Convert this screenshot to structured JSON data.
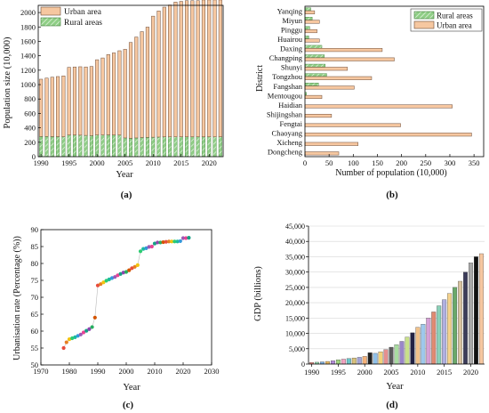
{
  "colors": {
    "urban": "#f6c7a0",
    "urban_edge": "#6b4a36",
    "rural": "#8fce86",
    "rural_edge": "#3c7a36",
    "connector": "#bbbbbb"
  },
  "chart_data": [
    {
      "id": "a",
      "type": "bar",
      "panel_label": "(a)",
      "xlabel": "Year",
      "ylabel": "Population size (10,000)",
      "xlim": [
        1989.5,
        2022.5
      ],
      "ylim": [
        0,
        2100
      ],
      "xticks": [
        1990,
        1995,
        2000,
        2005,
        2010,
        2015,
        2020
      ],
      "yticks": [
        0,
        200,
        400,
        600,
        800,
        1000,
        1200,
        1400,
        1600,
        1800,
        2000
      ],
      "legend_position": "top-left",
      "categories": [
        1990,
        1991,
        1992,
        1993,
        1994,
        1995,
        1996,
        1997,
        1998,
        1999,
        2000,
        2001,
        2002,
        2003,
        2004,
        2005,
        2006,
        2007,
        2008,
        2009,
        2010,
        2011,
        2012,
        2013,
        2014,
        2015,
        2016,
        2017,
        2018,
        2019,
        2020,
        2021,
        2022
      ],
      "series": [
        {
          "name": "Urban area",
          "values": [
            795,
            810,
            825,
            835,
            845,
            940,
            945,
            950,
            950,
            960,
            1045,
            1070,
            1115,
            1140,
            1170,
            1230,
            1330,
            1400,
            1470,
            1530,
            1680,
            1750,
            1800,
            1830,
            1870,
            1880,
            1890,
            1890,
            1890,
            1900,
            1900,
            1900,
            1900
          ]
        },
        {
          "name": "Rural areas",
          "values": [
            280,
            280,
            278,
            277,
            276,
            300,
            300,
            298,
            295,
            292,
            300,
            300,
            302,
            300,
            300,
            260,
            255,
            260,
            265,
            268,
            270,
            272,
            275,
            275,
            275,
            275,
            275,
            275,
            275,
            275,
            275,
            275,
            275
          ]
        }
      ]
    },
    {
      "id": "b",
      "type": "bar",
      "orientation": "horizontal",
      "panel_label": "(b)",
      "xlabel": "Number of population (10,000)",
      "ylabel": "District",
      "xlim": [
        0,
        370
      ],
      "xticks": [
        0,
        50,
        100,
        150,
        200,
        250,
        300,
        350
      ],
      "legend_position": "top-right",
      "categories": [
        "Yanqing",
        "Miyun",
        "Pinggu",
        "Huairou",
        "Daxing",
        "Changping",
        "Shunyi",
        "Tongzhou",
        "Fangshan",
        "Mentougou",
        "Haidian",
        "Shijingshan",
        "Fengtai",
        "Chaoyang",
        "Xicheng",
        "Dongcheng"
      ],
      "series": [
        {
          "name": "Rural areas",
          "values": [
            12,
            15,
            10,
            8,
            35,
            40,
            42,
            45,
            28,
            3,
            0,
            0,
            0,
            0,
            0,
            0
          ]
        },
        {
          "name": "Urban area",
          "values": [
            20,
            30,
            25,
            30,
            160,
            185,
            88,
            138,
            102,
            35,
            305,
            55,
            198,
            345,
            110,
            70
          ]
        }
      ]
    },
    {
      "id": "c",
      "type": "scatter",
      "panel_label": "(c)",
      "xlabel": "Year",
      "ylabel": "Urbanisation rate (Percentage (%))",
      "xlim": [
        1970,
        2030
      ],
      "ylim": [
        50,
        90
      ],
      "xticks": [
        1970,
        1980,
        1990,
        2000,
        2010,
        2020,
        2030
      ],
      "yticks": [
        50,
        55,
        60,
        65,
        70,
        75,
        80,
        85,
        90
      ],
      "x": [
        1978,
        1979,
        1980,
        1981,
        1982,
        1983,
        1984,
        1985,
        1986,
        1987,
        1988,
        1989,
        1990,
        1991,
        1992,
        1993,
        1994,
        1995,
        1996,
        1997,
        1998,
        1999,
        2000,
        2001,
        2002,
        2003,
        2004,
        2005,
        2006,
        2007,
        2008,
        2009,
        2010,
        2011,
        2012,
        2013,
        2014,
        2015,
        2016,
        2017,
        2018,
        2019,
        2020,
        2021,
        2022
      ],
      "y": [
        55.0,
        56.7,
        57.6,
        57.9,
        58.2,
        58.6,
        59.0,
        59.6,
        60.1,
        60.6,
        61.2,
        64.0,
        73.5,
        73.9,
        74.4,
        74.9,
        75.3,
        75.7,
        76.0,
        76.5,
        76.9,
        77.3,
        77.5,
        78.0,
        78.6,
        79.0,
        79.5,
        83.6,
        84.3,
        84.5,
        84.9,
        85.0,
        85.9,
        86.2,
        86.2,
        86.3,
        86.4,
        86.5,
        86.5,
        86.5,
        86.5,
        86.6,
        87.5,
        87.5,
        87.6
      ]
    },
    {
      "id": "d",
      "type": "bar",
      "panel_label": "(d)",
      "xlabel": "Year",
      "ylabel": "GDP (billions)",
      "xlim": [
        1989.4,
        2022.6
      ],
      "ylim": [
        0,
        45000
      ],
      "xticks": [
        1990,
        1995,
        2000,
        2005,
        2010,
        2015,
        2020
      ],
      "yticks": [
        0,
        5000,
        10000,
        15000,
        20000,
        25000,
        30000,
        35000,
        40000,
        45000
      ],
      "ytick_labels": [
        "0",
        "5,000",
        "10,000",
        "15,000",
        "20,000",
        "25,000",
        "30,000",
        "35,000",
        "40,000",
        "45,000"
      ],
      "categories": [
        1990,
        1991,
        1992,
        1993,
        1994,
        1995,
        1996,
        1997,
        1998,
        1999,
        2000,
        2001,
        2002,
        2003,
        2004,
        2005,
        2006,
        2007,
        2008,
        2009,
        2010,
        2011,
        2012,
        2013,
        2014,
        2015,
        2016,
        2017,
        2018,
        2019,
        2020,
        2021,
        2022
      ],
      "values": [
        500,
        600,
        710,
        860,
        1080,
        1400,
        1600,
        1800,
        2000,
        2200,
        2500,
        3700,
        3500,
        4000,
        4700,
        5500,
        6300,
        7400,
        8800,
        10200,
        12000,
        13000,
        15000,
        17000,
        19000,
        21000,
        23000,
        25000,
        27000,
        30000,
        33000,
        35000,
        36000
      ],
      "colors": [
        "#f08a7e",
        "#8fd0a8",
        "#7aaee0",
        "#e7b75f",
        "#b38ad9",
        "#9fd47d",
        "#f3a2c0",
        "#6bc5c9",
        "#d8c07a",
        "#a4a4d6",
        "#f6b27a",
        "#222222",
        "#8fc0e8",
        "#f3d27a",
        "#e58f8f",
        "#5b5b5b",
        "#a9dca0",
        "#9a86c9",
        "#c8e08a",
        "#222244",
        "#f0c18a",
        "#9ec8ec",
        "#d6a0d6",
        "#e08a72",
        "#8ad1b8",
        "#b0b0e0",
        "#f4d28c",
        "#6aa96a",
        "#d9c3a0",
        "#3c3c5a",
        "#a9a9a9",
        "#111111",
        "#f6c7a0"
      ]
    }
  ]
}
